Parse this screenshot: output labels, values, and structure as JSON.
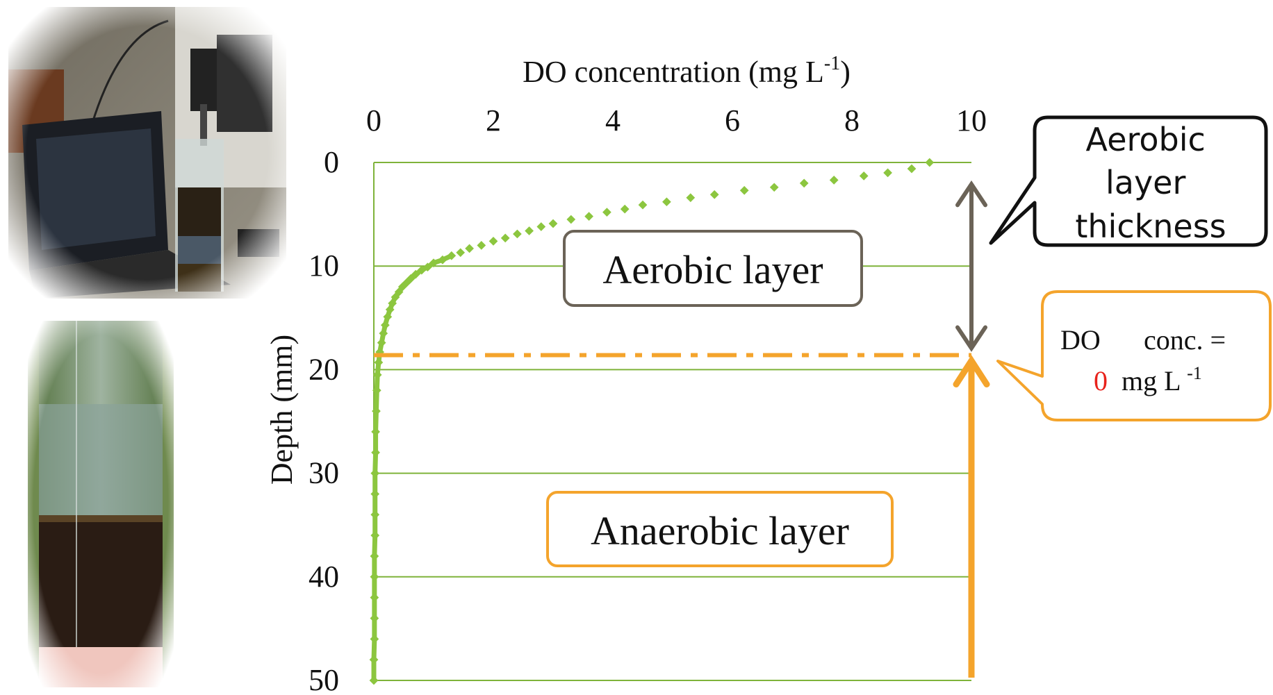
{
  "chart_data": {
    "type": "scatter",
    "title": "",
    "xlabel": "DO concentration (mg L",
    "xlabel_sup": "-1",
    "xlabel_close": ")",
    "ylabel": "Depth (mm)",
    "x_axis_position": "top",
    "y_axis_inverted": true,
    "xlim": [
      0,
      10
    ],
    "ylim": [
      0,
      50
    ],
    "x_ticks": [
      0,
      2,
      4,
      6,
      8,
      10
    ],
    "y_ticks": [
      0,
      10,
      20,
      30,
      40,
      50
    ],
    "grid": "horizontal",
    "series": [
      {
        "color": "#8cc63f",
        "points": [
          [
            9.3,
            0.0
          ],
          [
            9.0,
            0.6
          ],
          [
            8.6,
            1.0
          ],
          [
            8.2,
            1.3
          ],
          [
            7.7,
            1.7
          ],
          [
            7.2,
            2.0
          ],
          [
            6.7,
            2.4
          ],
          [
            6.2,
            2.7
          ],
          [
            5.7,
            3.1
          ],
          [
            5.3,
            3.4
          ],
          [
            4.9,
            3.8
          ],
          [
            4.5,
            4.1
          ],
          [
            4.2,
            4.5
          ],
          [
            3.9,
            4.8
          ],
          [
            3.6,
            5.2
          ],
          [
            3.3,
            5.5
          ],
          [
            3.0,
            5.9
          ],
          [
            2.8,
            6.2
          ],
          [
            2.6,
            6.6
          ],
          [
            2.4,
            6.9
          ],
          [
            2.2,
            7.3
          ],
          [
            2.0,
            7.6
          ],
          [
            1.8,
            8.0
          ],
          [
            1.6,
            8.3
          ],
          [
            1.45,
            8.7
          ],
          [
            1.3,
            9.0
          ],
          [
            1.15,
            9.4
          ],
          [
            1.0,
            9.7
          ],
          [
            0.9,
            10.1
          ],
          [
            0.8,
            10.4
          ],
          [
            0.7,
            10.8
          ],
          [
            0.62,
            11.2
          ],
          [
            0.55,
            11.6
          ],
          [
            0.48,
            12.0
          ],
          [
            0.42,
            12.5
          ],
          [
            0.36,
            13.0
          ],
          [
            0.31,
            13.6
          ],
          [
            0.27,
            14.2
          ],
          [
            0.23,
            14.9
          ],
          [
            0.19,
            15.7
          ],
          [
            0.16,
            16.5
          ],
          [
            0.13,
            17.4
          ],
          [
            0.1,
            18.3
          ],
          [
            0.08,
            19.3
          ],
          [
            0.06,
            20.5
          ],
          [
            0.05,
            22
          ],
          [
            0.04,
            24
          ],
          [
            0.03,
            26
          ],
          [
            0.03,
            28
          ],
          [
            0.02,
            30
          ],
          [
            0.02,
            32
          ],
          [
            0.02,
            34
          ],
          [
            0.02,
            36
          ],
          [
            0.01,
            38
          ],
          [
            0.01,
            40
          ],
          [
            0.01,
            42
          ],
          [
            0.01,
            44
          ],
          [
            0.01,
            46
          ],
          [
            0.0,
            48
          ],
          [
            0.0,
            50
          ]
        ]
      }
    ],
    "zero_do_depth": 18.6,
    "annotations": {
      "aerobic_layer": "Aerobic layer",
      "anaerobic_layer": "Anaerobic layer",
      "thickness_callout": [
        "Aerobic",
        "layer",
        "thickness"
      ],
      "do_zero_callout": {
        "line1_a": "DO",
        "line1_b": "conc. =",
        "value": "0",
        "unit": "mg L",
        "unit_sup": "-1"
      }
    },
    "colors": {
      "series": "#8cc63f",
      "grid": "#7fb33a",
      "anaerobic": "#f4a42c",
      "aerobic_box": "#6b6357",
      "zero_value": "#e8221b"
    }
  }
}
